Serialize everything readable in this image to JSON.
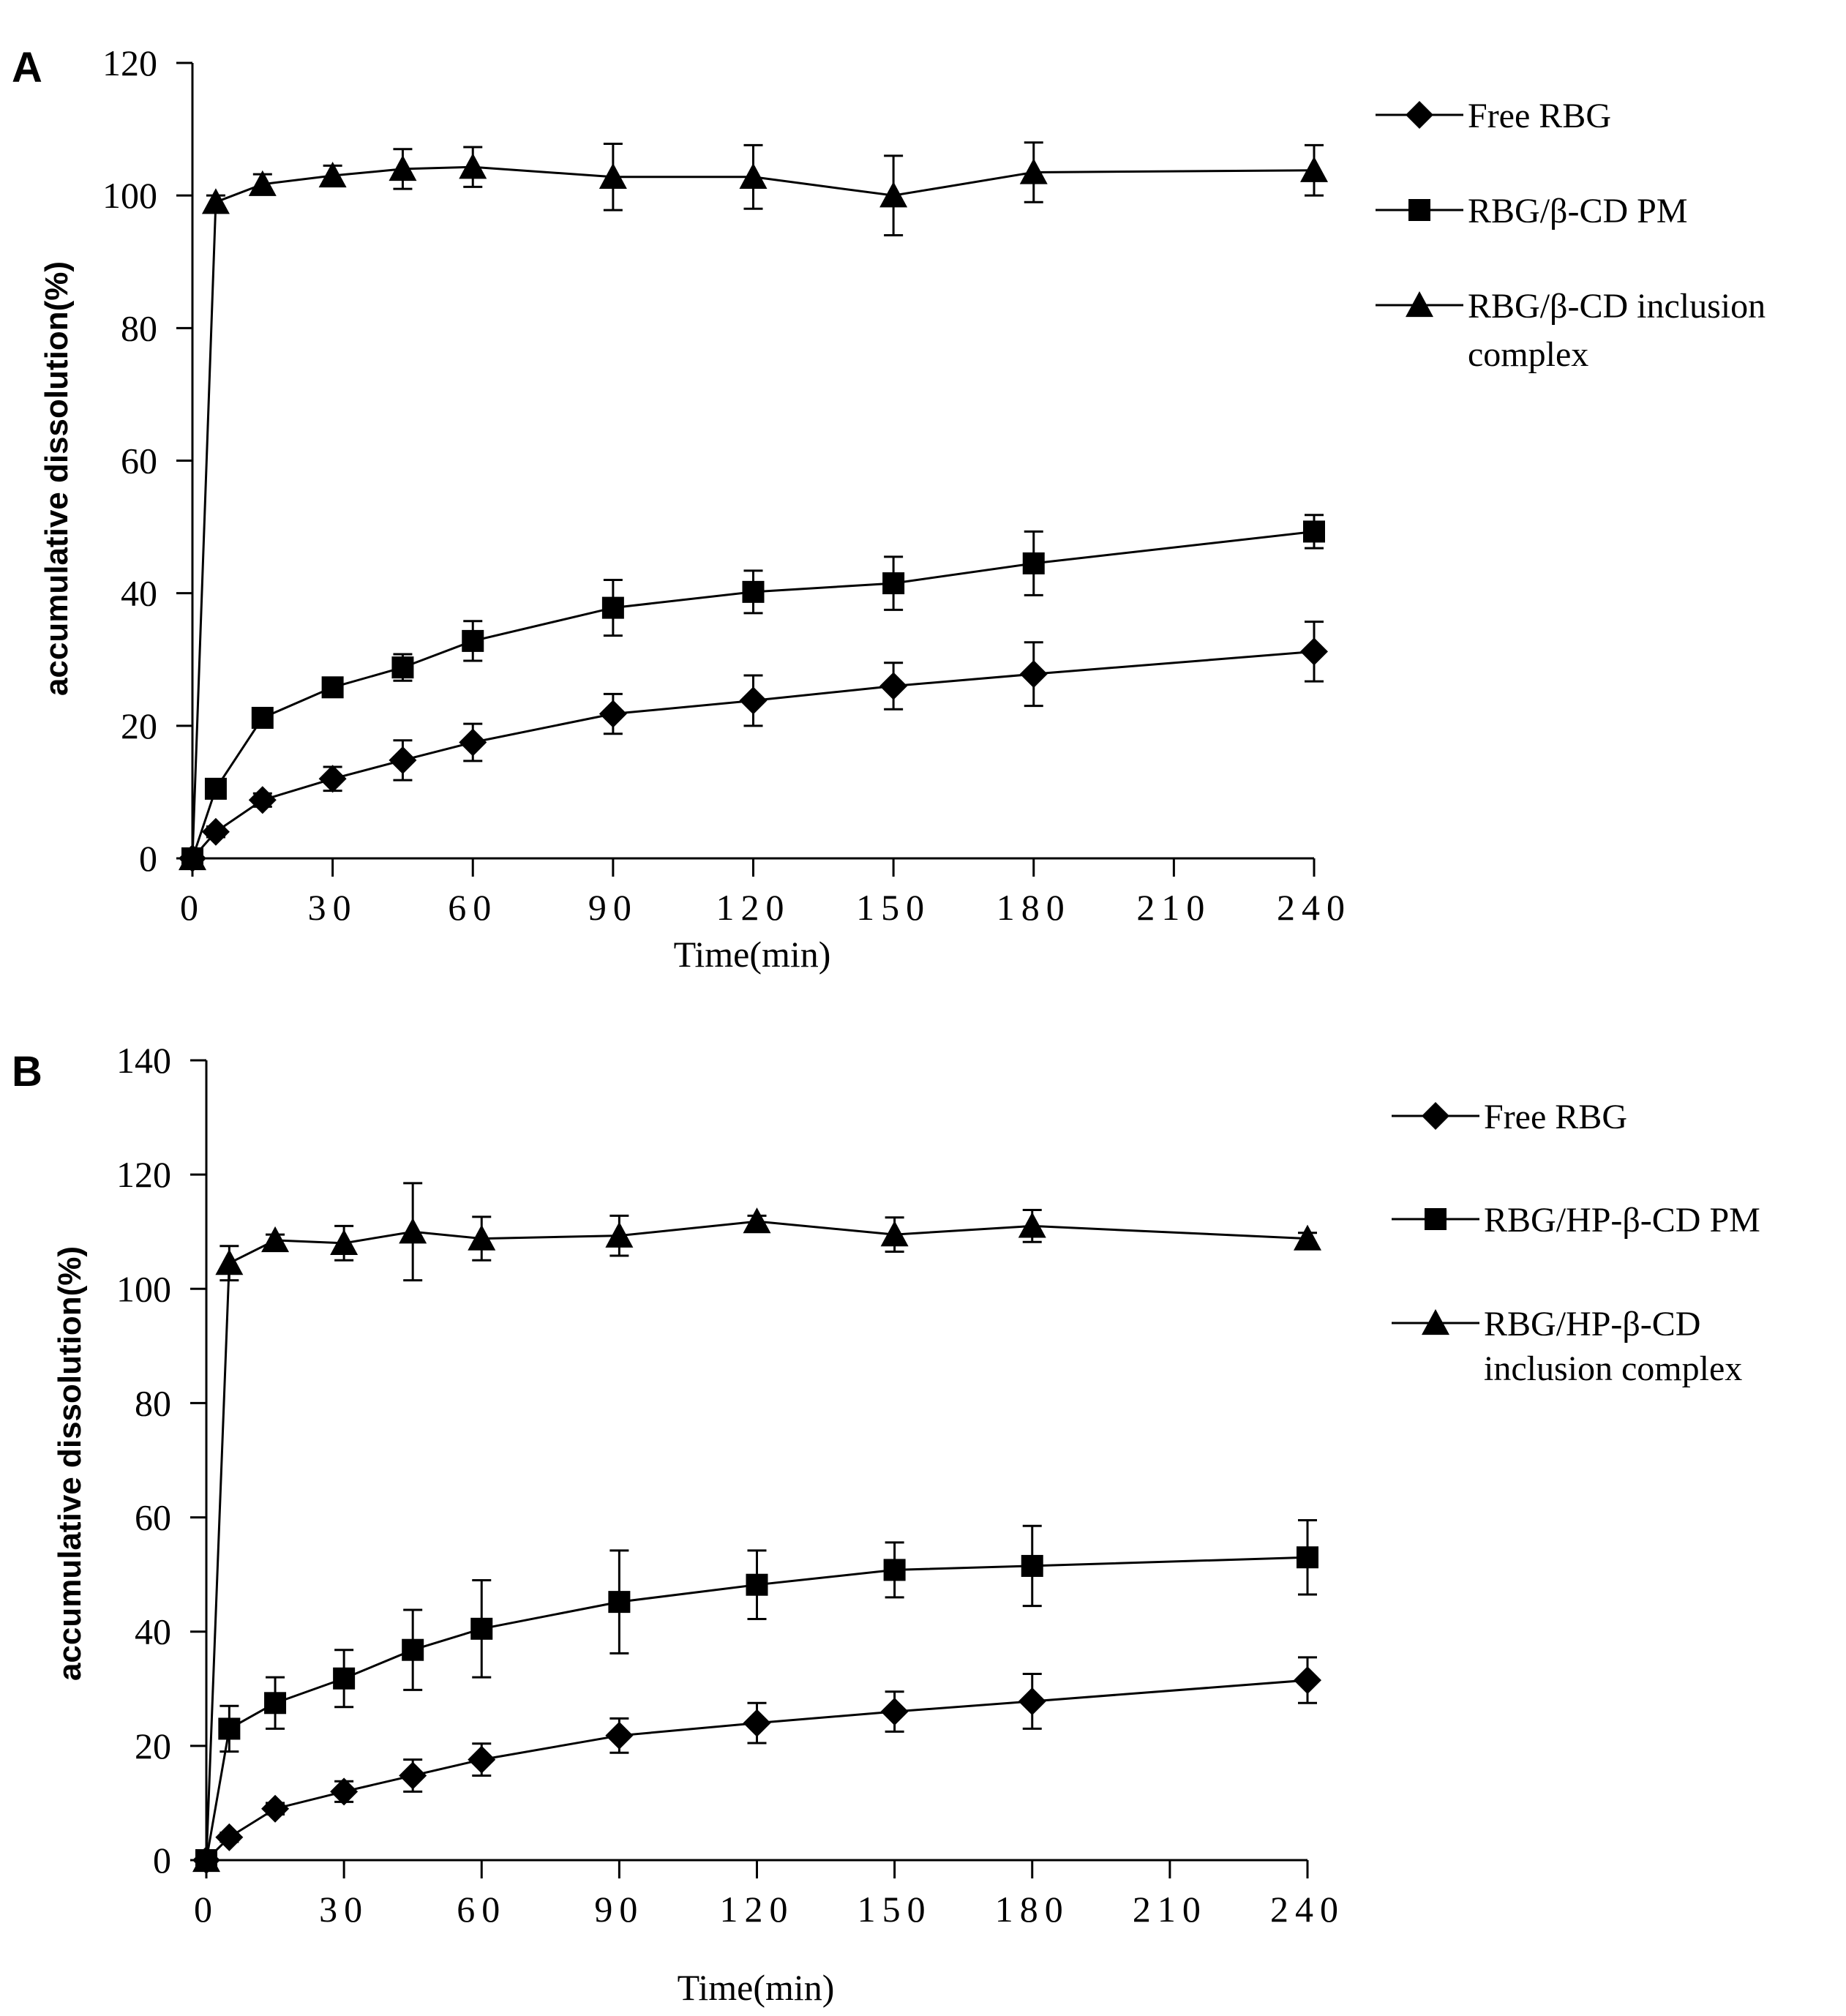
{
  "chart_data": [
    {
      "type": "line",
      "panel_label": "A",
      "xlabel": "Time(min)",
      "ylabel": "accumulative dissolution(%)",
      "xlim": [
        0,
        240
      ],
      "ylim": [
        0,
        120
      ],
      "xticks": [
        0,
        30,
        60,
        90,
        120,
        150,
        180,
        210,
        240
      ],
      "yticks": [
        0,
        20,
        40,
        60,
        80,
        100,
        120
      ],
      "x": [
        0,
        5,
        15,
        30,
        45,
        60,
        90,
        120,
        150,
        180,
        240
      ],
      "series": [
        {
          "name": "Free RBG",
          "marker": "diamond",
          "values": [
            0,
            4,
            8.8,
            12,
            14.8,
            17.5,
            21.8,
            23.8,
            26,
            27.8,
            31.2
          ],
          "errors": [
            0,
            0.8,
            1,
            1.8,
            3,
            2.8,
            3,
            3.8,
            3.5,
            4.8,
            4.5
          ]
        },
        {
          "name": "RBG/β-CD PM",
          "marker": "square",
          "values": [
            0,
            10.5,
            21.2,
            25.8,
            28.8,
            32.8,
            37.8,
            40.2,
            41.5,
            44.5,
            49.3
          ],
          "errors": [
            0,
            1,
            1.2,
            1.2,
            2,
            3,
            4.2,
            3.2,
            4,
            4.8,
            2.5
          ]
        },
        {
          "name": "RBG/β-CD inclusion complex",
          "legend_lines": [
            "RBG/β-CD inclusion",
            "complex"
          ],
          "marker": "triangle",
          "values": [
            0,
            99,
            101.7,
            103,
            104,
            104.3,
            102.8,
            102.8,
            100,
            103.5,
            103.8
          ],
          "errors": [
            0,
            1,
            1.5,
            1.5,
            3,
            3,
            5,
            4.8,
            6,
            4.5,
            3.8
          ]
        }
      ]
    },
    {
      "type": "line",
      "panel_label": "B",
      "xlabel": "Time(min)",
      "ylabel": "accumulative dissolution(%)",
      "xlim": [
        0,
        240
      ],
      "ylim": [
        0,
        140
      ],
      "xticks": [
        0,
        30,
        60,
        90,
        120,
        150,
        180,
        210,
        240
      ],
      "yticks": [
        0,
        20,
        40,
        60,
        80,
        100,
        120,
        140
      ],
      "x": [
        0,
        5,
        15,
        30,
        45,
        60,
        90,
        120,
        150,
        180,
        240
      ],
      "series": [
        {
          "name": "Free RBG",
          "marker": "diamond",
          "values": [
            0,
            4,
            9,
            12,
            14.8,
            17.6,
            21.8,
            24,
            26,
            27.8,
            31.5
          ],
          "errors": [
            0,
            0.8,
            1,
            1.8,
            2.8,
            2.8,
            3,
            3.5,
            3.5,
            4.8,
            4
          ]
        },
        {
          "name": "RBG/HP-β-CD PM",
          "marker": "square",
          "values": [
            0,
            23,
            27.5,
            31.8,
            36.8,
            40.5,
            45.2,
            48.2,
            50.8,
            51.5,
            53
          ],
          "errors": [
            0,
            4,
            4.5,
            5,
            7,
            8.5,
            9,
            6,
            4.8,
            7,
            6.5
          ]
        },
        {
          "name": "RBG/HP-β-CD inclusion complex",
          "legend_lines": [
            "RBG/HP-β-CD",
            "inclusion  complex"
          ],
          "marker": "triangle",
          "values": [
            0,
            104.5,
            108.5,
            108,
            110,
            108.8,
            109.3,
            111.8,
            109.5,
            111,
            108.8
          ],
          "errors": [
            0,
            3,
            1,
            3,
            8.5,
            3.8,
            3.5,
            1,
            3,
            2.8,
            1
          ]
        }
      ]
    }
  ]
}
